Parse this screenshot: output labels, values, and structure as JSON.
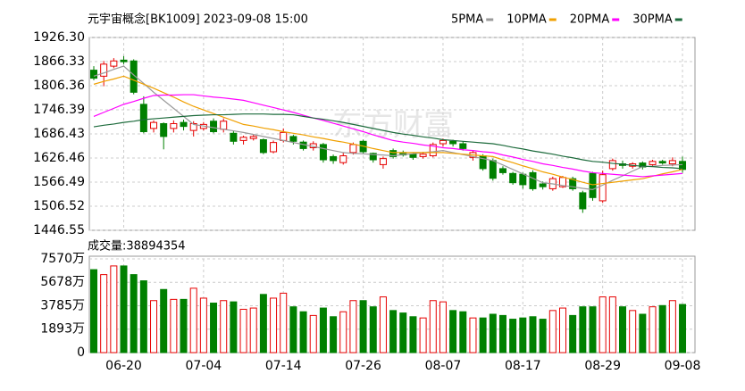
{
  "chart_data": {
    "type": "candlestick",
    "title": "元宇宙概念[BK1009] 2023-09-08 15:00",
    "watermark": "东方财富",
    "categories": [
      null,
      null,
      null,
      "06-20",
      null,
      null,
      null,
      null,
      null,
      null,
      null,
      "07-04",
      null,
      null,
      null,
      null,
      null,
      null,
      null,
      "07-14",
      null,
      null,
      null,
      null,
      null,
      null,
      null,
      "07-26",
      null,
      null,
      null,
      null,
      null,
      null,
      null,
      "08-07",
      null,
      null,
      null,
      null,
      null,
      null,
      null,
      "08-17",
      null,
      null,
      null,
      null,
      null,
      null,
      null,
      "08-29",
      null,
      null,
      null,
      null,
      null,
      null,
      null,
      "09-08"
    ],
    "open": [
      1845,
      1830,
      1855,
      1870,
      1868,
      1760,
      1700,
      1712,
      1700,
      1715,
      1695,
      1700,
      1718,
      1698,
      1688,
      1670,
      1675,
      1672,
      1642,
      1670,
      1680,
      1666,
      1652,
      1660,
      1630,
      1615,
      1640,
      1668,
      1638,
      1610,
      1645,
      1640,
      1636,
      1630,
      1632,
      1662,
      1668,
      1662,
      1628,
      1632,
      1620,
      1600,
      1588,
      1586,
      1590,
      1562,
      1550,
      1555,
      1575,
      1540,
      1588,
      1520,
      1600,
      1612,
      1606,
      1614,
      1610,
      1618,
      1612,
      1618
    ],
    "high": [
      1855,
      1868,
      1875,
      1880,
      1872,
      1780,
      1720,
      1715,
      1720,
      1722,
      1718,
      1716,
      1725,
      1725,
      1695,
      1682,
      1685,
      1675,
      1670,
      1700,
      1684,
      1670,
      1668,
      1664,
      1635,
      1640,
      1665,
      1672,
      1640,
      1630,
      1650,
      1645,
      1640,
      1642,
      1665,
      1675,
      1672,
      1668,
      1645,
      1636,
      1625,
      1606,
      1592,
      1590,
      1596,
      1568,
      1580,
      1582,
      1580,
      1545,
      1592,
      1595,
      1625,
      1620,
      1616,
      1618,
      1622,
      1622,
      1628,
      1630
    ],
    "low": [
      1820,
      1805,
      1850,
      1860,
      1785,
      1688,
      1690,
      1648,
      1690,
      1695,
      1680,
      1695,
      1688,
      1690,
      1660,
      1660,
      1670,
      1636,
      1638,
      1665,
      1660,
      1645,
      1645,
      1615,
      1612,
      1610,
      1635,
      1638,
      1615,
      1600,
      1625,
      1630,
      1622,
      1625,
      1628,
      1655,
      1655,
      1645,
      1620,
      1595,
      1570,
      1585,
      1560,
      1550,
      1545,
      1548,
      1545,
      1552,
      1545,
      1490,
      1520,
      1515,
      1595,
      1600,
      1600,
      1598,
      1605,
      1610,
      1606,
      1590
    ],
    "close": [
      1825,
      1860,
      1868,
      1866,
      1790,
      1692,
      1715,
      1680,
      1712,
      1705,
      1712,
      1710,
      1692,
      1718,
      1668,
      1678,
      1680,
      1640,
      1665,
      1690,
      1668,
      1650,
      1662,
      1622,
      1620,
      1632,
      1660,
      1642,
      1622,
      1625,
      1630,
      1634,
      1628,
      1636,
      1660,
      1670,
      1662,
      1650,
      1640,
      1600,
      1576,
      1590,
      1565,
      1560,
      1550,
      1555,
      1575,
      1578,
      1550,
      1500,
      1528,
      1585,
      1620,
      1608,
      1612,
      1604,
      1618,
      1614,
      1620,
      1598
    ],
    "series": [
      {
        "name": "5PMA",
        "color": "#9a9a9a",
        "values": [
          1830,
          1838,
          1847,
          1855,
          1833,
          1812,
          1790,
          1770,
          1750,
          1730,
          1710,
          1706,
          1702,
          1698,
          1694,
          1690,
          1685,
          1680,
          1675,
          1670,
          1665,
          1660,
          1655,
          1650,
          1645,
          1640,
          1638,
          1637,
          1635,
          1634,
          1632,
          1635,
          1637,
          1640,
          1642,
          1645,
          1640,
          1635,
          1630,
          1625,
          1620,
          1609,
          1598,
          1587,
          1576,
          1565,
          1562,
          1558,
          1555,
          1551,
          1548,
          1559,
          1571,
          1582,
          1594,
          1605,
          1606,
          1608,
          1609,
          1610
        ]
      },
      {
        "name": "10PMA",
        "color": "#f0a000",
        "values": [
          1810,
          1817,
          1823,
          1830,
          1820,
          1810,
          1800,
          1789,
          1778,
          1766,
          1755,
          1746,
          1737,
          1728,
          1719,
          1710,
          1706,
          1701,
          1697,
          1692,
          1688,
          1684,
          1679,
          1675,
          1670,
          1666,
          1661,
          1656,
          1650,
          1645,
          1640,
          1640,
          1640,
          1640,
          1640,
          1640,
          1638,
          1636,
          1634,
          1632,
          1630,
          1622,
          1615,
          1607,
          1600,
          1592,
          1586,
          1579,
          1573,
          1566,
          1560,
          1563,
          1566,
          1569,
          1572,
          1575,
          1581,
          1587,
          1592,
          1598
        ]
      },
      {
        "name": "20PMA",
        "color": "#ff00ff",
        "values": [
          1730,
          1740,
          1750,
          1760,
          1767,
          1775,
          1782,
          1783,
          1783,
          1784,
          1784,
          1781,
          1778,
          1776,
          1773,
          1770,
          1764,
          1758,
          1752,
          1746,
          1740,
          1733,
          1726,
          1720,
          1713,
          1706,
          1699,
          1692,
          1684,
          1677,
          1670,
          1666,
          1663,
          1659,
          1656,
          1652,
          1650,
          1647,
          1645,
          1642,
          1640,
          1634,
          1629,
          1623,
          1618,
          1612,
          1608,
          1603,
          1599,
          1594,
          1590,
          1588,
          1586,
          1584,
          1582,
          1580,
          1582,
          1584,
          1586,
          1588
        ]
      },
      {
        "name": "30PMA",
        "color": "#1d6b3c",
        "values": [
          1704,
          1708,
          1711,
          1715,
          1718,
          1722,
          1724,
          1726,
          1728,
          1730,
          1732,
          1733,
          1734,
          1734,
          1735,
          1736,
          1736,
          1736,
          1735,
          1735,
          1734,
          1730,
          1726,
          1723,
          1719,
          1715,
          1710,
          1705,
          1700,
          1695,
          1690,
          1686,
          1683,
          1679,
          1676,
          1672,
          1670,
          1668,
          1666,
          1664,
          1662,
          1658,
          1653,
          1649,
          1644,
          1640,
          1636,
          1631,
          1627,
          1622,
          1618,
          1616,
          1613,
          1611,
          1608,
          1606,
          1605,
          1603,
          1602,
          1600
        ]
      }
    ],
    "up_color": "#e60000",
    "down_color": "#008000",
    "ylim": [
      1446.55,
      1926.3
    ],
    "yticks": [
      {
        "value": 1926.3,
        "label": "1926.30"
      },
      1866.33,
      1806.36,
      1746.39,
      1686.43,
      1626.46,
      1566.49,
      1506.52,
      1446.55
    ],
    "grid": true,
    "volume": {
      "title": "成交量:38894354",
      "values": [
        67000000,
        63000000,
        70000000,
        70000000,
        63000000,
        58000000,
        42000000,
        51000000,
        43000000,
        43000000,
        52000000,
        44000000,
        40000000,
        42000000,
        41000000,
        35000000,
        36000000,
        47000000,
        44000000,
        48000000,
        37000000,
        33000000,
        30000000,
        36000000,
        29000000,
        33000000,
        42000000,
        42000000,
        37000000,
        45000000,
        34000000,
        32000000,
        29000000,
        28000000,
        42000000,
        41000000,
        34000000,
        33000000,
        28000000,
        28000000,
        31000000,
        30000000,
        27000000,
        28000000,
        29000000,
        27000000,
        34000000,
        36000000,
        30000000,
        37000000,
        37000000,
        45000000,
        45000000,
        37000000,
        34000000,
        31000000,
        37000000,
        38000000,
        42000000,
        38894354
      ],
      "ylim": [
        0,
        75700000
      ],
      "yticks": [
        0,
        {
          "value": 18930000,
          "label": "1893万"
        },
        {
          "value": 37850000,
          "label": "3785万"
        },
        {
          "value": 56780000,
          "label": "5678万"
        },
        {
          "value": 75700000,
          "label": "7570万"
        }
      ]
    }
  }
}
